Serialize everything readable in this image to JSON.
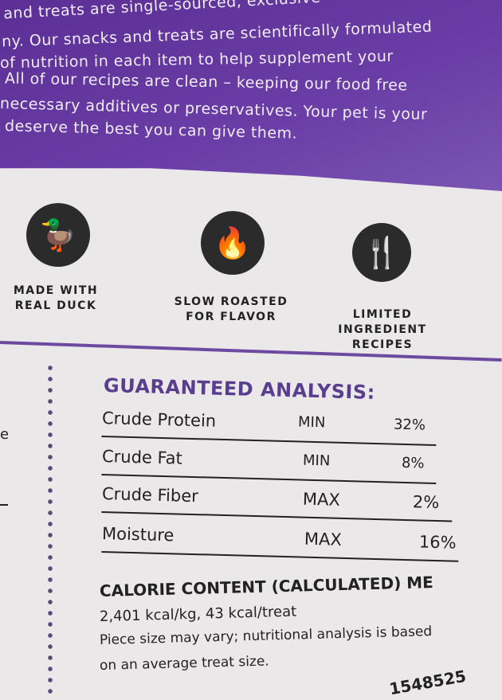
{
  "intro_lines": [
    "and treats are single-sourced, exclusive",
    "ny. Our snacks and treats are scientifically formulated",
    "of nutrition in each item to help supplement your",
    "All of our recipes are clean – keeping our food free",
    "necessary additives or preservatives. Your pet is your",
    "deserve the best you can give them."
  ],
  "features": [
    {
      "icon": "duck-icon",
      "line1": "MADE WITH",
      "line2": "REAL DUCK"
    },
    {
      "icon": "flame-icon",
      "line1": "SLOW ROASTED",
      "line2": "FOR FLAVOR"
    },
    {
      "icon": "spatula-fork-icon",
      "line1": "LIMITED INGREDIENT",
      "line2": "RECIPES"
    }
  ],
  "analysis": {
    "title": "GUARANTEED ANALYSIS:",
    "rows": [
      {
        "name": "Crude Protein",
        "basis": "MIN",
        "value": "32%"
      },
      {
        "name": "Crude Fat",
        "basis": "MIN",
        "value": "8%"
      },
      {
        "name": "Crude Fiber",
        "basis": "MAX",
        "value": "2%"
      },
      {
        "name": "Moisture",
        "basis": "MAX",
        "value": "16%"
      }
    ]
  },
  "calorie": {
    "title": "CALORIE CONTENT (CALCULATED) ME",
    "value": "2,401 kcal/kg, 43 kcal/treat",
    "note1": "Piece size may vary; nutritional analysis is based",
    "note2": "on an average treat size."
  },
  "lot_code": "1548525",
  "left_fragment": "e",
  "colors": {
    "purple": "#5b2f95",
    "accent": "#5a3e8e"
  }
}
